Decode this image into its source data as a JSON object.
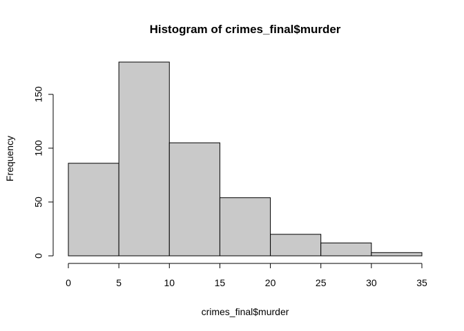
{
  "chart_data": {
    "type": "bar",
    "title": "Histogram of crimes_final$murder",
    "xlabel": "crimes_final$murder",
    "ylabel": "Frequency",
    "bins": [
      {
        "start": 0,
        "end": 5,
        "count": 86
      },
      {
        "start": 5,
        "end": 10,
        "count": 180
      },
      {
        "start": 10,
        "end": 15,
        "count": 105
      },
      {
        "start": 15,
        "end": 20,
        "count": 54
      },
      {
        "start": 20,
        "end": 25,
        "count": 20
      },
      {
        "start": 25,
        "end": 30,
        "count": 12
      },
      {
        "start": 30,
        "end": 35,
        "count": 3
      }
    ],
    "xlim": [
      0,
      35
    ],
    "ylim": [
      0,
      180
    ],
    "x_ticks": [
      "0",
      "5",
      "10",
      "15",
      "20",
      "25",
      "30",
      "35"
    ],
    "y_ticks": [
      "0",
      "50",
      "100",
      "150"
    ],
    "bar_fill": "#c9c9c9",
    "bar_stroke": "#000000",
    "grid": false
  }
}
